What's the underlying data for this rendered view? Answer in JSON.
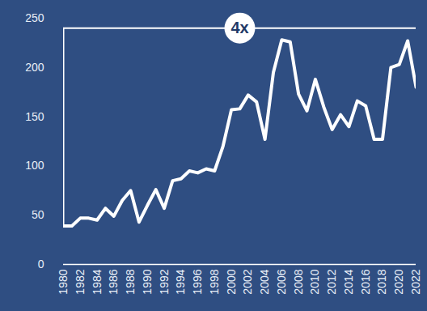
{
  "chart_data": {
    "type": "line",
    "x": [
      1980,
      1981,
      1982,
      1983,
      1984,
      1985,
      1986,
      1987,
      1988,
      1989,
      1990,
      1991,
      1992,
      1993,
      1994,
      1995,
      1996,
      1997,
      1998,
      1999,
      2000,
      2001,
      2002,
      2003,
      2004,
      2005,
      2006,
      2007,
      2008,
      2009,
      2010,
      2011,
      2012,
      2013,
      2014,
      2015,
      2016,
      2017,
      2018,
      2019,
      2020,
      2021,
      2022
    ],
    "values": [
      39,
      39,
      47,
      47,
      45,
      57,
      49,
      65,
      75,
      43,
      60,
      76,
      57,
      85,
      87,
      95,
      93,
      97,
      95,
      120,
      157,
      158,
      172,
      165,
      127,
      195,
      228,
      226,
      173,
      156,
      188,
      160,
      137,
      152,
      140,
      166,
      161,
      127,
      127,
      200,
      203,
      227,
      180
    ],
    "color": "#ffffff",
    "xlim": [
      1980,
      2022
    ],
    "xticks": [
      1980,
      1982,
      1984,
      1986,
      1988,
      1990,
      1992,
      1994,
      1996,
      1998,
      2000,
      2002,
      2004,
      2006,
      2008,
      2010,
      2012,
      2014,
      2016,
      2018,
      2020,
      2022
    ],
    "ylim": [
      0,
      250
    ],
    "yticks": [
      0,
      50,
      100,
      150,
      200,
      250
    ],
    "grid": false,
    "annotation": {
      "text": "4x",
      "x": 2001,
      "y": 240
    }
  }
}
